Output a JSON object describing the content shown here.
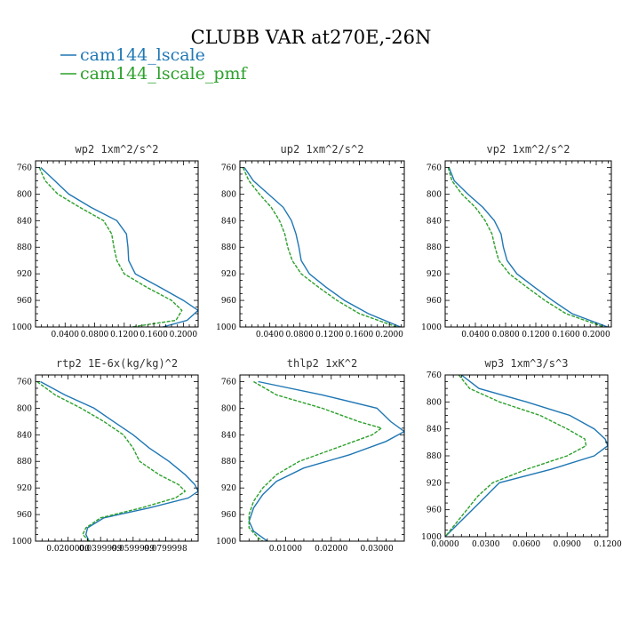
{
  "figure": {
    "title": "CLUBB VAR at270E,-26N",
    "legend": [
      {
        "label": "cam144_lscale",
        "color": "#1f77b4",
        "dash": "solid"
      },
      {
        "label": "cam144_lscale_pmf",
        "color": "#2ca02c",
        "dash": "dashed"
      }
    ]
  },
  "chart_data": [
    {
      "type": "line",
      "title": "wp2   1xm^2/s^2",
      "xlim": [
        0.0,
        0.22
      ],
      "xticks": [
        "0.0400",
        "0.0800",
        "0.1200",
        "0.1600",
        "0.2000"
      ],
      "xtick_values": [
        0.04,
        0.08,
        0.12,
        0.16,
        0.2
      ],
      "ylim": [
        750,
        1000
      ],
      "yticks": [
        "760",
        "800",
        "840",
        "880",
        "920",
        "960",
        "1000"
      ],
      "ytick_values": [
        760,
        800,
        840,
        880,
        920,
        960,
        1000
      ],
      "series": [
        {
          "name": "cam144_lscale",
          "y": [
            760,
            780,
            800,
            820,
            840,
            860,
            880,
            900,
            920,
            940,
            960,
            975,
            990,
            1000
          ],
          "x": [
            0.007,
            0.026,
            0.045,
            0.075,
            0.11,
            0.123,
            0.125,
            0.126,
            0.135,
            0.168,
            0.2,
            0.22,
            0.205,
            0.172
          ]
        },
        {
          "name": "cam144_lscale_pmf",
          "y": [
            760,
            780,
            800,
            820,
            840,
            860,
            880,
            900,
            920,
            940,
            960,
            975,
            990,
            1000
          ],
          "x": [
            0.005,
            0.013,
            0.03,
            0.06,
            0.092,
            0.103,
            0.106,
            0.11,
            0.12,
            0.15,
            0.184,
            0.198,
            0.19,
            0.13
          ]
        }
      ]
    },
    {
      "type": "line",
      "title": "up2   1xm^2/s^2",
      "xlim": [
        0.0,
        0.22
      ],
      "xticks": [
        "0.0400",
        "0.0800",
        "0.1200",
        "0.1600",
        "0.2000"
      ],
      "xtick_values": [
        0.04,
        0.08,
        0.12,
        0.16,
        0.2
      ],
      "ylim": [
        750,
        1000
      ],
      "yticks": [
        "760",
        "800",
        "840",
        "880",
        "920",
        "960",
        "1000"
      ],
      "ytick_values": [
        760,
        800,
        840,
        880,
        920,
        960,
        1000
      ],
      "series": [
        {
          "name": "cam144_lscale",
          "y": [
            760,
            780,
            800,
            820,
            840,
            860,
            880,
            900,
            920,
            940,
            960,
            980,
            1000
          ],
          "x": [
            0.006,
            0.018,
            0.038,
            0.058,
            0.069,
            0.075,
            0.079,
            0.082,
            0.093,
            0.115,
            0.14,
            0.172,
            0.215
          ]
        },
        {
          "name": "cam144_lscale_pmf",
          "y": [
            760,
            780,
            800,
            820,
            840,
            860,
            880,
            900,
            920,
            940,
            960,
            980,
            1000
          ],
          "x": [
            0.004,
            0.012,
            0.026,
            0.042,
            0.053,
            0.06,
            0.064,
            0.07,
            0.082,
            0.105,
            0.13,
            0.16,
            0.21
          ]
        }
      ]
    },
    {
      "type": "line",
      "title": "vp2   1xm^2/s^2",
      "xlim": [
        0.0,
        0.22
      ],
      "xticks": [
        "0.0400",
        "0.0800",
        "0.1200",
        "0.1600",
        "0.2000"
      ],
      "xtick_values": [
        0.04,
        0.08,
        0.12,
        0.16,
        0.2
      ],
      "ylim": [
        750,
        1000
      ],
      "yticks": [
        "760",
        "800",
        "840",
        "880",
        "920",
        "960",
        "1000"
      ],
      "ytick_values": [
        760,
        800,
        840,
        880,
        920,
        960,
        1000
      ],
      "series": [
        {
          "name": "cam144_lscale",
          "y": [
            760,
            780,
            800,
            820,
            840,
            860,
            880,
            900,
            920,
            940,
            960,
            980,
            1000
          ],
          "x": [
            0.005,
            0.012,
            0.03,
            0.05,
            0.065,
            0.074,
            0.077,
            0.082,
            0.095,
            0.118,
            0.142,
            0.168,
            0.215
          ]
        },
        {
          "name": "cam144_lscale_pmf",
          "y": [
            760,
            780,
            800,
            820,
            840,
            860,
            880,
            900,
            920,
            940,
            960,
            980,
            1000
          ],
          "x": [
            0.004,
            0.009,
            0.022,
            0.04,
            0.053,
            0.062,
            0.066,
            0.071,
            0.085,
            0.108,
            0.132,
            0.16,
            0.21
          ]
        }
      ]
    },
    {
      "type": "line",
      "title": "rtp2   1E-6x(kg/kg)^2",
      "xlim": [
        0.0,
        0.1
      ],
      "xticks": [
        "0.0200000",
        "0.0399999",
        "0.0599999",
        "0.0799998"
      ],
      "xtick_values": [
        0.02,
        0.04,
        0.06,
        0.08
      ],
      "ylim": [
        750,
        1000
      ],
      "yticks": [
        "760",
        "800",
        "840",
        "880",
        "920",
        "960",
        "1000"
      ],
      "ytick_values": [
        760,
        800,
        840,
        880,
        920,
        960,
        1000
      ],
      "series": [
        {
          "name": "cam144_lscale",
          "y": [
            760,
            780,
            800,
            820,
            840,
            860,
            880,
            900,
            915,
            925,
            935,
            950,
            965,
            980,
            990,
            1000
          ],
          "x": [
            0.003,
            0.018,
            0.036,
            0.048,
            0.06,
            0.07,
            0.082,
            0.092,
            0.098,
            0.1,
            0.094,
            0.07,
            0.042,
            0.032,
            0.031,
            0.033
          ]
        },
        {
          "name": "cam144_lscale_pmf",
          "y": [
            760,
            780,
            800,
            820,
            840,
            860,
            880,
            900,
            915,
            925,
            935,
            950,
            965,
            980,
            990,
            1000
          ],
          "x": [
            0.001,
            0.012,
            0.028,
            0.042,
            0.054,
            0.06,
            0.064,
            0.076,
            0.088,
            0.092,
            0.086,
            0.065,
            0.04,
            0.031,
            0.029,
            0.033
          ]
        }
      ]
    },
    {
      "type": "line",
      "title": "thlp2   1xK^2",
      "xlim": [
        0.0,
        0.036
      ],
      "xticks": [
        "0.01000",
        "0.02000",
        "0.03000"
      ],
      "xtick_values": [
        0.01,
        0.02,
        0.03
      ],
      "ylim": [
        750,
        1000
      ],
      "yticks": [
        "760",
        "800",
        "840",
        "880",
        "920",
        "960",
        "1000"
      ],
      "ytick_values": [
        760,
        800,
        840,
        880,
        920,
        960,
        1000
      ],
      "series": [
        {
          "name": "cam144_lscale",
          "y": [
            760,
            780,
            800,
            820,
            835,
            850,
            870,
            890,
            910,
            930,
            950,
            970,
            985,
            1000
          ],
          "x": [
            0.004,
            0.018,
            0.03,
            0.033,
            0.036,
            0.032,
            0.024,
            0.014,
            0.008,
            0.005,
            0.003,
            0.002,
            0.003,
            0.006
          ]
        },
        {
          "name": "cam144_lscale_pmf",
          "y": [
            760,
            780,
            800,
            820,
            830,
            840,
            860,
            880,
            900,
            920,
            940,
            960,
            980,
            995,
            1000
          ],
          "x": [
            0.003,
            0.008,
            0.018,
            0.026,
            0.031,
            0.029,
            0.021,
            0.013,
            0.008,
            0.005,
            0.003,
            0.002,
            0.002,
            0.004,
            0.005
          ]
        }
      ]
    },
    {
      "type": "line",
      "title": "wp3   1xm^3/s^3",
      "xlim": [
        0.0,
        0.12
      ],
      "xticks": [
        "0.0000",
        "0.0300",
        "0.0600",
        "0.0900",
        "0.1200"
      ],
      "xtick_values": [
        0.0,
        0.03,
        0.06,
        0.09,
        0.12
      ],
      "ylim": [
        760,
        1000
      ],
      "yticks": [
        "760",
        "800",
        "840",
        "880",
        "920",
        "960",
        "1000"
      ],
      "ytick_values": [
        760,
        800,
        840,
        880,
        920,
        960,
        1000
      ],
      "series": [
        {
          "name": "cam144_lscale",
          "y": [
            760,
            780,
            800,
            820,
            840,
            855,
            865,
            880,
            900,
            920,
            940,
            960,
            980,
            1000
          ],
          "x": [
            0.012,
            0.025,
            0.06,
            0.092,
            0.11,
            0.118,
            0.12,
            0.11,
            0.078,
            0.04,
            0.03,
            0.02,
            0.01,
            0.0
          ]
        },
        {
          "name": "cam144_lscale_pmf",
          "y": [
            760,
            780,
            800,
            820,
            840,
            855,
            865,
            880,
            900,
            920,
            940,
            960,
            980,
            1000
          ],
          "x": [
            0.01,
            0.018,
            0.04,
            0.07,
            0.09,
            0.103,
            0.104,
            0.09,
            0.06,
            0.035,
            0.024,
            0.016,
            0.008,
            0.0
          ]
        }
      ]
    }
  ]
}
